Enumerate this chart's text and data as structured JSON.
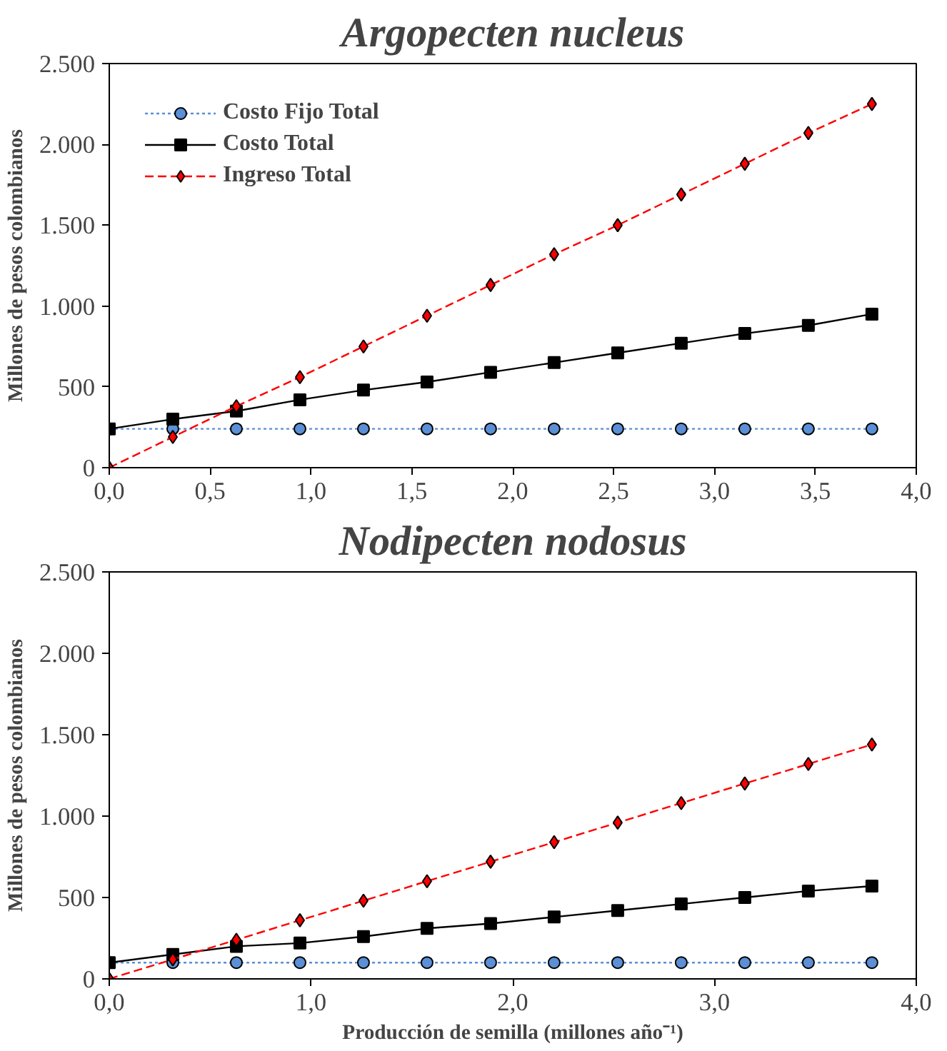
{
  "chart_data": [
    {
      "type": "line",
      "title": "Argopecten nucleus",
      "ylabel": "Millones de pesos colombianos",
      "x": [
        0,
        0.315,
        0.63,
        0.945,
        1.26,
        1.575,
        1.89,
        2.205,
        2.52,
        2.835,
        3.15,
        3.465,
        3.78
      ],
      "xlim": [
        0,
        4
      ],
      "xticks": [
        {
          "value": 0,
          "label": "0,0"
        },
        {
          "value": 0.5,
          "label": "0,5"
        },
        {
          "value": 1,
          "label": "1,0"
        },
        {
          "value": 1.5,
          "label": "1,5"
        },
        {
          "value": 2,
          "label": "2,0"
        },
        {
          "value": 2.5,
          "label": "2,5"
        },
        {
          "value": 3,
          "label": "3,0"
        },
        {
          "value": 3.5,
          "label": "3,5"
        },
        {
          "value": 4,
          "label": "4,0"
        }
      ],
      "ylim": [
        0,
        2500
      ],
      "yticks": [
        0,
        {
          "value": 500,
          "label": "500"
        },
        {
          "value": 1000,
          "label": "1.000"
        },
        {
          "value": 1500,
          "label": "1.500"
        },
        {
          "value": 2000,
          "label": "2.000"
        },
        {
          "value": 2500,
          "label": "2.500"
        }
      ],
      "grid": false,
      "legend": "top left",
      "series": [
        {
          "name": "Costo Fijo Total",
          "color": "#5b8fd6",
          "marker": "circle",
          "line_style": "dotted",
          "values": [
            240,
            240,
            240,
            240,
            240,
            240,
            240,
            240,
            240,
            240,
            240,
            240,
            240
          ]
        },
        {
          "name": "Costo Total",
          "color": "#000000",
          "marker": "square",
          "line_style": "solid",
          "values": [
            240,
            300,
            350,
            420,
            480,
            530,
            590,
            650,
            710,
            770,
            830,
            880,
            950
          ]
        },
        {
          "name": "Ingreso Total",
          "color": "#ff0000",
          "marker": "diamond",
          "line_style": "dashed",
          "values": [
            0,
            190,
            380,
            560,
            750,
            940,
            1130,
            1320,
            1500,
            1690,
            1880,
            2070,
            2250
          ]
        }
      ]
    },
    {
      "type": "line",
      "title": "Nodipecten nodosus",
      "ylabel": "Millones de pesos colombianos",
      "xlabel": "Producción de semilla (millones año⁻¹)",
      "x": [
        0,
        0.315,
        0.63,
        0.945,
        1.26,
        1.575,
        1.89,
        2.205,
        2.52,
        2.835,
        3.15,
        3.465,
        3.78
      ],
      "xlim": [
        0,
        4
      ],
      "xticks": [
        {
          "value": 0,
          "label": "0,0"
        },
        {
          "value": 1,
          "label": "1,0"
        },
        {
          "value": 2,
          "label": "2,0"
        },
        {
          "value": 3,
          "label": "3,0"
        },
        {
          "value": 4,
          "label": "4,0"
        }
      ],
      "ylim": [
        0,
        2500
      ],
      "yticks": [
        0,
        {
          "value": 500,
          "label": "500"
        },
        {
          "value": 1000,
          "label": "1.000"
        },
        {
          "value": 1500,
          "label": "1.500"
        },
        {
          "value": 2000,
          "label": "2.000"
        },
        {
          "value": 2500,
          "label": "2.500"
        }
      ],
      "grid": false,
      "legend": false,
      "series": [
        {
          "color": "#5b8fd6",
          "marker": "circle",
          "line_style": "dotted",
          "values": [
            100,
            100,
            100,
            100,
            100,
            100,
            100,
            100,
            100,
            100,
            100,
            100,
            100
          ]
        },
        {
          "color": "#000000",
          "marker": "square",
          "line_style": "solid",
          "values": [
            100,
            150,
            200,
            220,
            260,
            310,
            340,
            380,
            420,
            460,
            500,
            540,
            570
          ]
        },
        {
          "color": "#ff0000",
          "marker": "diamond",
          "line_style": "dashed",
          "values": [
            0,
            120,
            240,
            360,
            480,
            600,
            720,
            840,
            960,
            1080,
            1200,
            1320,
            1440
          ]
        }
      ]
    }
  ]
}
